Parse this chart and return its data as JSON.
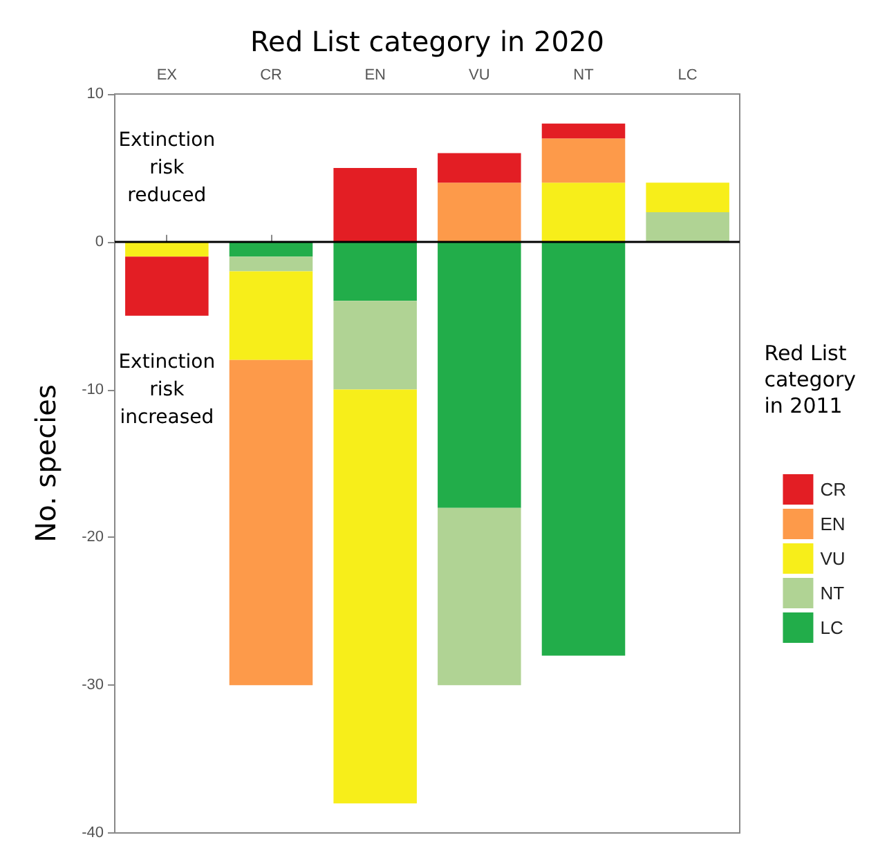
{
  "chart_data": {
    "type": "bar",
    "stacked": true,
    "xlabel": "Red List category in 2020",
    "ylabel": "No. species",
    "legend_title": "Red List category in 2011",
    "legend": "right",
    "categories": [
      "EX",
      "CR",
      "EN",
      "VU",
      "NT",
      "LC"
    ],
    "series": [
      {
        "name": "LC",
        "color": "#22ad4a",
        "values": [
          null,
          -1,
          -4,
          -18,
          -28,
          null
        ]
      },
      {
        "name": "NT",
        "color": "#b0d394",
        "values": [
          null,
          -1,
          -6,
          -12,
          null,
          2
        ]
      },
      {
        "name": "VU",
        "color": "#f7ee1a",
        "values": [
          -1,
          -6,
          -28,
          null,
          4,
          2
        ]
      },
      {
        "name": "EN",
        "color": "#fd9a4a",
        "values": [
          null,
          -22,
          null,
          4,
          3,
          null
        ]
      },
      {
        "name": "CR",
        "color": "#e31e24",
        "values": [
          -4,
          null,
          5,
          2,
          1,
          null
        ]
      }
    ],
    "ylim": [
      -40,
      10
    ],
    "yticks": [
      -40,
      -30,
      -20,
      -10,
      0,
      10
    ],
    "grid": false,
    "ref_lines": [
      {
        "axis": "y",
        "value": 0,
        "color": "#000000"
      }
    ],
    "annotations": [
      "Extinction risk reduced",
      "Extinction risk increased"
    ]
  }
}
